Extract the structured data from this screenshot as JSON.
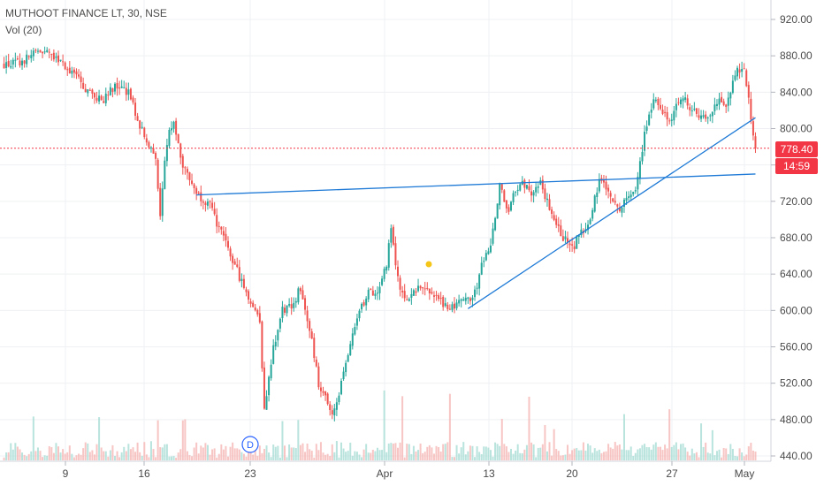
{
  "header": {
    "symbol_line": "MUTHOOT FINANCE LT, 30, NSE",
    "indicator": "Vol (20)"
  },
  "price_axis": {
    "labels": [
      "920.00",
      "880.00",
      "840.00",
      "800.00",
      "760.00",
      "720.00",
      "680.00",
      "640.00",
      "600.00",
      "560.00",
      "520.00",
      "480.00",
      "440.00"
    ],
    "last_price_tag": "778.40",
    "countdown_tag": "14:59"
  },
  "time_axis": {
    "labels": [
      "9",
      "16",
      "23",
      "Apr",
      "13",
      "20",
      "27",
      "May"
    ]
  },
  "markers": {
    "dividend": "D"
  },
  "colors": {
    "up": "#26a69a",
    "down": "#ef5350",
    "trendline": "#1e7ad6",
    "tag_red": "#f23645",
    "grid": "#eef0f3"
  },
  "chart_data": {
    "type": "candlestick",
    "title": "MUTHOOT FINANCE LT, 30, NSE",
    "ylim": [
      440,
      930
    ],
    "last_price": 778.4,
    "price_path": [
      [
        0,
        870
      ],
      [
        4,
        872
      ],
      [
        8,
        885
      ],
      [
        12,
        878
      ],
      [
        16,
        860
      ],
      [
        19,
        840
      ],
      [
        22,
        830
      ],
      [
        25,
        848
      ],
      [
        28,
        840
      ],
      [
        30,
        810
      ],
      [
        32,
        785
      ],
      [
        34,
        770
      ],
      [
        35,
        700
      ],
      [
        36,
        760
      ],
      [
        37,
        800
      ],
      [
        38,
        810
      ],
      [
        40,
        760
      ],
      [
        43,
        730
      ],
      [
        46,
        715
      ],
      [
        48,
        690
      ],
      [
        51,
        655
      ],
      [
        54,
        620
      ],
      [
        57,
        590
      ],
      [
        58,
        490
      ],
      [
        60,
        560
      ],
      [
        62,
        600
      ],
      [
        64,
        605
      ],
      [
        66,
        625
      ],
      [
        68,
        580
      ],
      [
        70,
        520
      ],
      [
        72,
        500
      ],
      [
        73,
        482
      ],
      [
        75,
        520
      ],
      [
        77,
        560
      ],
      [
        79,
        600
      ],
      [
        81,
        620
      ],
      [
        83,
        615
      ],
      [
        85,
        650
      ],
      [
        86,
        690
      ],
      [
        87,
        645
      ],
      [
        89,
        610
      ],
      [
        91,
        620
      ],
      [
        93,
        628
      ],
      [
        95,
        618
      ],
      [
        97,
        610
      ],
      [
        99,
        602
      ],
      [
        101,
        607
      ],
      [
        103,
        610
      ],
      [
        105,
        628
      ],
      [
        106,
        652
      ],
      [
        108,
        672
      ],
      [
        109,
        700
      ],
      [
        110,
        738
      ],
      [
        112,
        710
      ],
      [
        113,
        725
      ],
      [
        115,
        740
      ],
      [
        117,
        730
      ],
      [
        119,
        745
      ],
      [
        121,
        710
      ],
      [
        124,
        680
      ],
      [
        126,
        668
      ],
      [
        128,
        685
      ],
      [
        130,
        700
      ],
      [
        132,
        745
      ],
      [
        134,
        735
      ],
      [
        136,
        710
      ],
      [
        138,
        725
      ],
      [
        140,
        732
      ],
      [
        142,
        795
      ],
      [
        144,
        835
      ],
      [
        146,
        820
      ],
      [
        148,
        810
      ],
      [
        150,
        835
      ],
      [
        152,
        825
      ],
      [
        154,
        815
      ],
      [
        156,
        812
      ],
      [
        158,
        830
      ],
      [
        160,
        825
      ],
      [
        162,
        860
      ],
      [
        164,
        868
      ],
      [
        165,
        835
      ],
      [
        166,
        790
      ],
      [
        166.5,
        778.4
      ]
    ],
    "volume_max_label": "",
    "trendlines": [
      {
        "name": "",
        "points": [
          [
            43,
            727
          ],
          [
            166.5,
            750
          ]
        ]
      },
      {
        "name": "",
        "points": [
          [
            103,
            602
          ],
          [
            166.5,
            812
          ]
        ]
      }
    ]
  }
}
